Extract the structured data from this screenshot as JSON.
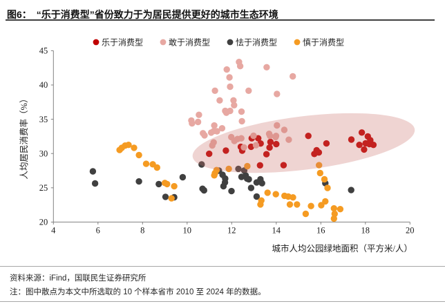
{
  "header": {
    "title": "图6：　“乐于消费型”省份致力于为居民提供更好的城市生态环境"
  },
  "footer": {
    "source": "资料来源：iFind，国联民生证券研究所",
    "note": "注：图中散点为本文中所选取的 10 个样本省市 2010 至 2024 年的数据。"
  },
  "chart_data": {
    "type": "scatter",
    "title": "图6：“乐于消费型”省份致力于为居民提供更好的城市生态环境",
    "xlabel": "城市人均公园绿地面积（平方米/人）",
    "ylabel": "人均居民消费率（%）",
    "xlim": [
      4,
      20
    ],
    "ylim": [
      20,
      45
    ],
    "xticks": [
      4,
      6,
      8,
      10,
      12,
      14,
      16,
      18,
      20
    ],
    "yticks": [
      20,
      25,
      30,
      35,
      40,
      45
    ],
    "grid": false,
    "legend_position": "top",
    "axis_color": "#808080",
    "series": [
      {
        "name": "乐于消费型",
        "color": "#C00000",
        "points": [
          [
            12.9,
            32.22
          ],
          [
            13.19,
            32.22
          ],
          [
            13.3,
            31.46
          ],
          [
            12.87,
            30.99
          ],
          [
            13.74,
            31.68
          ],
          [
            14.0,
            31.37
          ],
          [
            13.7,
            30.87
          ],
          [
            11.74,
            30.43
          ],
          [
            10.99,
            29.96
          ],
          [
            12.41,
            30.98
          ],
          [
            12.47,
            30.42
          ],
          [
            13.56,
            29.9
          ],
          [
            13.27,
            28.28
          ],
          [
            14.33,
            28.3
          ],
          [
            15.44,
            32.57
          ],
          [
            16.25,
            31.47
          ],
          [
            15.81,
            30.48
          ],
          [
            15.91,
            30.15
          ],
          [
            15.71,
            29.94
          ],
          [
            17.37,
            32.04
          ],
          [
            17.84,
            33.06
          ],
          [
            18.11,
            32.5
          ],
          [
            18.22,
            31.94
          ],
          [
            17.73,
            31.26
          ],
          [
            18.01,
            31.49
          ],
          [
            18.18,
            31.37
          ],
          [
            18.36,
            31.26
          ],
          [
            17.94,
            30.58
          ]
        ]
      },
      {
        "name": "敢于消费型",
        "color": "#E7A8A2",
        "points": [
          [
            12.33,
            43.36
          ],
          [
            12.38,
            42.75
          ],
          [
            11.78,
            42.26
          ],
          [
            13.57,
            42.59
          ],
          [
            11.9,
            41.11
          ],
          [
            14.74,
            41.26
          ],
          [
            11.25,
            39.16
          ],
          [
            11.93,
            39.75
          ],
          [
            12.76,
            39.16
          ],
          [
            14.03,
            38.69
          ],
          [
            11.46,
            37.75
          ],
          [
            12.08,
            37.75
          ],
          [
            12.11,
            37.05
          ],
          [
            11.71,
            36.22
          ],
          [
            11.93,
            36.22
          ],
          [
            12.44,
            36.11
          ],
          [
            10.53,
            35.65
          ],
          [
            10.19,
            34.82
          ],
          [
            10.22,
            34.41
          ],
          [
            10.49,
            34.61
          ],
          [
            11.76,
            35.95
          ],
          [
            12.46,
            34.72
          ],
          [
            11.22,
            34.09
          ],
          [
            11.19,
            33.27
          ],
          [
            11.57,
            33.68
          ],
          [
            10.71,
            32.96
          ],
          [
            10.78,
            32.65
          ],
          [
            11.08,
            33.05
          ],
          [
            11.34,
            33.25
          ],
          [
            11.98,
            32.4
          ],
          [
            12.26,
            32.12
          ],
          [
            12.12,
            31.83
          ],
          [
            12.43,
            32.22
          ],
          [
            12.98,
            32.59
          ],
          [
            13.68,
            32.87
          ],
          [
            13.97,
            32.4
          ],
          [
            14.03,
            34.1
          ],
          [
            14.36,
            33.45
          ],
          [
            13.72,
            32.57
          ],
          [
            13.99,
            32.57
          ],
          [
            14.56,
            32.02
          ],
          [
            11.19,
            31.62
          ],
          [
            13.09,
            31.21
          ],
          [
            12.55,
            30.9
          ],
          [
            11.13,
            31.18
          ]
        ]
      },
      {
        "name": "怯于消费型",
        "color": "#404040",
        "points": [
          [
            5.77,
            27.4
          ],
          [
            5.87,
            25.64
          ],
          [
            7.84,
            25.93
          ],
          [
            8.73,
            25.54
          ],
          [
            9.8,
            26.54
          ],
          [
            9.03,
            23.68
          ],
          [
            9.42,
            23.62
          ],
          [
            10.65,
            28.41
          ],
          [
            10.69,
            24.86
          ],
          [
            10.76,
            24.63
          ],
          [
            11.43,
            27.5
          ],
          [
            11.59,
            26.9
          ],
          [
            11.71,
            26.34
          ],
          [
            11.7,
            25.79
          ],
          [
            11.63,
            25.23
          ],
          [
            11.99,
            24.52
          ],
          [
            12.3,
            27.76
          ],
          [
            12.56,
            27.52
          ],
          [
            12.44,
            26.59
          ],
          [
            12.63,
            26.79
          ],
          [
            12.69,
            26.34
          ],
          [
            12.77,
            26.24
          ],
          [
            12.87,
            24.98
          ],
          [
            13.12,
            25.78
          ],
          [
            13.29,
            26.24
          ],
          [
            13.36,
            25.67
          ],
          [
            13.12,
            23.72
          ],
          [
            16.2,
            25.67
          ],
          [
            17.36,
            24.67
          ]
        ]
      },
      {
        "name": "慎于消费型",
        "color": "#F59B22",
        "points": [
          [
            6.97,
            30.51
          ],
          [
            7.07,
            30.84
          ],
          [
            7.22,
            31.16
          ],
          [
            7.37,
            31.26
          ],
          [
            7.62,
            30.84
          ],
          [
            7.84,
            29.78
          ],
          [
            8.16,
            28.5
          ],
          [
            8.46,
            28.43
          ],
          [
            8.65,
            27.95
          ],
          [
            9.0,
            25.71
          ],
          [
            9.1,
            25.54
          ],
          [
            9.42,
            25.22
          ],
          [
            9.3,
            23.46
          ],
          [
            11.32,
            27.58
          ],
          [
            11.25,
            27.14
          ],
          [
            11.22,
            26.81
          ],
          [
            11.87,
            27.76
          ],
          [
            12.7,
            28.16
          ],
          [
            13.61,
            24.28
          ],
          [
            13.33,
            23.15
          ],
          [
            13.29,
            22.57
          ],
          [
            15.92,
            28.3
          ],
          [
            15.97,
            27.15
          ],
          [
            16.16,
            26.24
          ],
          [
            16.3,
            24.98
          ],
          [
            13.98,
            24.06
          ],
          [
            14.37,
            23.83
          ],
          [
            14.54,
            23.72
          ],
          [
            14.75,
            23.6
          ],
          [
            14.61,
            22.57
          ],
          [
            14.93,
            22.57
          ],
          [
            15.32,
            21.2
          ],
          [
            15.56,
            22.34
          ],
          [
            16.02,
            22.46
          ],
          [
            16.2,
            23.02
          ],
          [
            16.59,
            22.0
          ],
          [
            16.87,
            21.89
          ],
          [
            16.62,
            21.2
          ],
          [
            16.59,
            20.5
          ]
        ]
      }
    ],
    "highlight_ellipse": {
      "center": [
        15.23,
        31.53
      ],
      "rx": 5.02,
      "ry": 3.9,
      "rotation_deg": -7,
      "color": "#CA7069",
      "opacity": 0.3
    }
  }
}
